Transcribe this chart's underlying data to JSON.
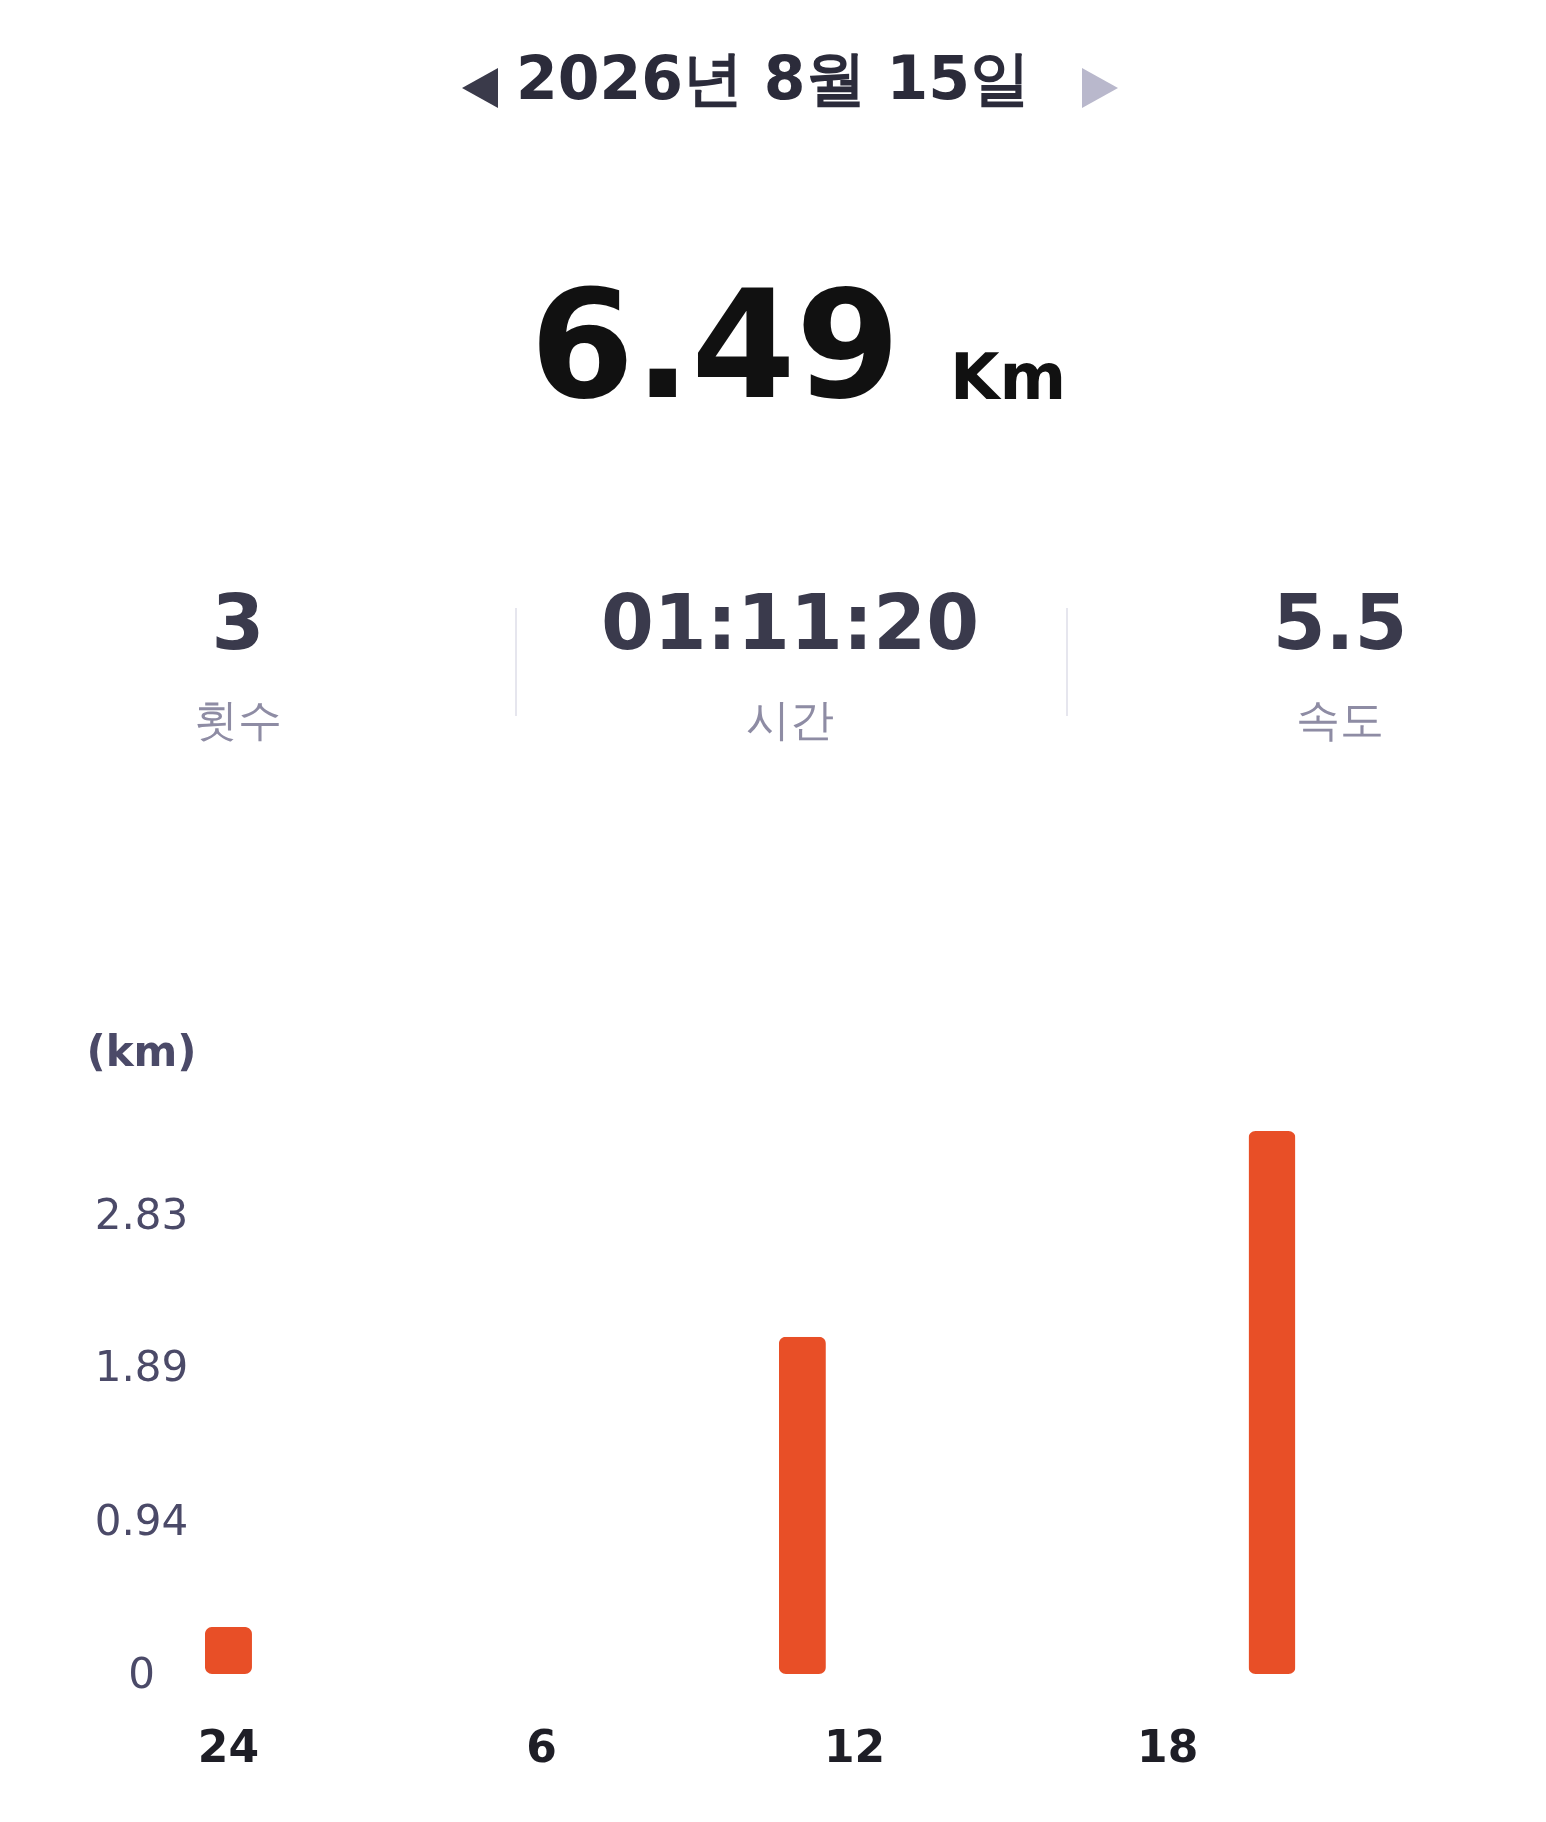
{
  "chart_data": {
    "type": "bar",
    "title": "2026년 8월 15일",
    "annotations": [
      "6.49",
      "Km",
      "3",
      "횟수",
      "01:11:20",
      "시간",
      "5.5",
      "속도"
    ],
    "ylabel": "(km)",
    "categories": [
      "24",
      null,
      null,
      null,
      null,
      null,
      "6",
      null,
      null,
      null,
      null,
      null,
      "12",
      null,
      null,
      null,
      null,
      null,
      "18",
      null,
      null,
      null,
      null,
      null
    ],
    "values": [
      0.29,
      null,
      null,
      null,
      null,
      null,
      null,
      null,
      null,
      null,
      null,
      2.08,
      null,
      null,
      null,
      null,
      null,
      null,
      null,
      null,
      3.35,
      null,
      null,
      null
    ],
    "color": "#e84f27",
    "ylim": [
      0,
      3.35
    ],
    "yticks": [
      0,
      0.94,
      1.89,
      2.83
    ],
    "grid": false
  }
}
